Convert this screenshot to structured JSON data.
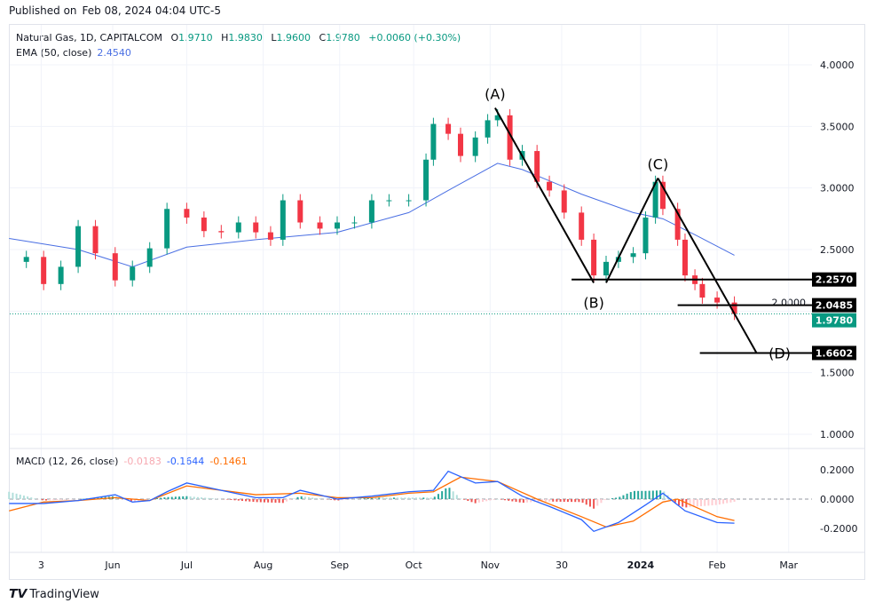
{
  "header": {
    "published_label": "Published on",
    "published_date": "Feb 08, 2024 04:04 UTC-5"
  },
  "legend": {
    "symbol": "Natural Gas, 1D, CAPITALCOM",
    "open_label": "O",
    "open": "1.9710",
    "high_label": "H",
    "high": "1.9830",
    "low_label": "L",
    "low": "1.9600",
    "close_label": "C",
    "close": "1.9780",
    "change": "+0.0060 (+0.30%)",
    "ema_label": "EMA (50, close)",
    "ema_value": "2.4540",
    "macd_label": "MACD (12, 26, close)",
    "macd_hist": "-0.0183",
    "macd_line": "-0.1644",
    "macd_signal": "-0.1461"
  },
  "footer": {
    "brand": "TradingView"
  },
  "colors": {
    "up": "#089981",
    "down": "#f23645",
    "ema": "#4a6fe3",
    "macd": "#2962ff",
    "signal": "#ff6d00",
    "hist_up": "#26a69a",
    "hist_up_light": "#b2dfdb",
    "hist_down": "#ef5350",
    "hist_down_light": "#ffcdd2",
    "current_price": "#089981"
  },
  "chart_data": [
    {
      "type": "candlestick",
      "title": "Natural Gas, 1D, CAPITALCOM",
      "ylim": [
        0.8,
        4.3
      ],
      "y_ticks": [
        "4.0000",
        "3.5000",
        "3.0000",
        "2.5000",
        "2.0000",
        "1.5000",
        "1.0000"
      ],
      "x_ticks": [
        {
          "date": "2023-05-03",
          "label": "3"
        },
        {
          "date": "2023-06-01",
          "label": "Jun"
        },
        {
          "date": "2023-07-01",
          "label": "Jul"
        },
        {
          "date": "2023-08-01",
          "label": "Aug"
        },
        {
          "date": "2023-09-01",
          "label": "Sep"
        },
        {
          "date": "2023-10-01",
          "label": "Oct"
        },
        {
          "date": "2023-11-01",
          "label": "Nov"
        },
        {
          "date": "2023-11-30",
          "label": "30"
        },
        {
          "date": "2024-01-01",
          "label": "2024"
        },
        {
          "date": "2024-02-01",
          "label": "Feb"
        },
        {
          "date": "2024-03-01",
          "label": "Mar"
        }
      ],
      "close": [
        [
          "2023-04-20",
          2.4
        ],
        [
          "2023-04-27",
          2.44
        ],
        [
          "2023-05-04",
          2.22
        ],
        [
          "2023-05-11",
          2.36
        ],
        [
          "2023-05-18",
          2.69
        ],
        [
          "2023-05-25",
          2.47
        ],
        [
          "2023-06-02",
          2.25
        ],
        [
          "2023-06-09",
          2.36
        ],
        [
          "2023-06-16",
          2.51
        ],
        [
          "2023-06-23",
          2.83
        ],
        [
          "2023-07-01",
          2.76
        ],
        [
          "2023-07-08",
          2.65
        ],
        [
          "2023-07-15",
          2.64
        ],
        [
          "2023-07-22",
          2.72
        ],
        [
          "2023-07-29",
          2.64
        ],
        [
          "2023-08-04",
          2.58
        ],
        [
          "2023-08-09",
          2.9
        ],
        [
          "2023-08-16",
          2.72
        ],
        [
          "2023-08-24",
          2.67
        ],
        [
          "2023-08-31",
          2.72
        ],
        [
          "2023-09-07",
          2.72
        ],
        [
          "2023-09-14",
          2.9
        ],
        [
          "2023-09-21",
          2.9
        ],
        [
          "2023-09-29",
          2.9
        ],
        [
          "2023-10-06",
          3.23
        ],
        [
          "2023-10-09",
          3.52
        ],
        [
          "2023-10-15",
          3.44
        ],
        [
          "2023-10-20",
          3.26
        ],
        [
          "2023-10-26",
          3.41
        ],
        [
          "2023-10-31",
          3.55
        ],
        [
          "2023-11-04",
          3.59
        ],
        [
          "2023-11-09",
          3.23
        ],
        [
          "2023-11-14",
          3.3
        ],
        [
          "2023-11-20",
          3.05
        ],
        [
          "2023-11-25",
          2.98
        ],
        [
          "2023-12-01",
          2.8
        ],
        [
          "2023-12-08",
          2.58
        ],
        [
          "2023-12-13",
          2.29
        ],
        [
          "2023-12-18",
          2.4
        ],
        [
          "2023-12-23",
          2.44
        ],
        [
          "2023-12-29",
          2.47
        ],
        [
          "2024-01-03",
          2.76
        ],
        [
          "2024-01-07",
          3.05
        ],
        [
          "2024-01-10",
          2.83
        ],
        [
          "2024-01-16",
          2.58
        ],
        [
          "2024-01-19",
          2.29
        ],
        [
          "2024-01-23",
          2.22
        ],
        [
          "2024-01-26",
          2.11
        ],
        [
          "2024-02-01",
          2.07
        ],
        [
          "2024-02-08",
          1.978
        ]
      ],
      "ema50": [
        [
          "2023-04-20",
          2.59
        ],
        [
          "2023-05-18",
          2.5
        ],
        [
          "2023-06-09",
          2.36
        ],
        [
          "2023-07-01",
          2.52
        ],
        [
          "2023-07-29",
          2.58
        ],
        [
          "2023-08-31",
          2.64
        ],
        [
          "2023-09-29",
          2.8
        ],
        [
          "2023-10-15",
          2.98
        ],
        [
          "2023-11-04",
          3.2
        ],
        [
          "2023-11-14",
          3.15
        ],
        [
          "2023-12-08",
          2.95
        ],
        [
          "2023-12-29",
          2.8
        ],
        [
          "2024-01-10",
          2.75
        ],
        [
          "2024-01-23",
          2.62
        ],
        [
          "2024-02-08",
          2.454
        ]
      ],
      "current_price": 1.978,
      "levels": [
        {
          "value": 2.257,
          "label": "2.2570",
          "from": "2023-12-04"
        },
        {
          "value": 2.0485,
          "label": "2.0485",
          "from": "2024-01-16"
        },
        {
          "value": 1.6602,
          "label": "1.6602",
          "from": "2024-01-25"
        }
      ],
      "current_label": "1.9780",
      "wave_points": [
        {
          "label": "(A)",
          "date": "2023-11-03",
          "value": 3.65,
          "pos": "above"
        },
        {
          "label": "(B)",
          "date": "2023-12-13",
          "value": 2.23,
          "pos": "below"
        },
        {
          "label": "(B)",
          "date": "2023-12-18",
          "value": 2.23,
          "pos": "none"
        },
        {
          "label": "(C)",
          "date": "2024-01-08",
          "value": 3.08,
          "pos": "above"
        },
        {
          "label": "(D)",
          "date": "2024-02-17",
          "value": 1.66,
          "pos": "right"
        }
      ]
    },
    {
      "type": "line",
      "title": "MACD (12, 26, close)",
      "ylim": [
        -0.3,
        0.3
      ],
      "y_ticks": [
        "0.2000",
        "0.0000",
        "-0.2000"
      ],
      "series": [
        {
          "name": "MACD",
          "points": [
            [
              "2023-04-20",
              -0.03
            ],
            [
              "2023-05-04",
              -0.03
            ],
            [
              "2023-05-18",
              -0.01
            ],
            [
              "2023-06-02",
              0.03
            ],
            [
              "2023-06-09",
              -0.02
            ],
            [
              "2023-06-16",
              -0.01
            ],
            [
              "2023-06-23",
              0.05
            ],
            [
              "2023-07-01",
              0.11
            ],
            [
              "2023-07-15",
              0.06
            ],
            [
              "2023-07-29",
              0.01
            ],
            [
              "2023-08-09",
              0.01
            ],
            [
              "2023-08-16",
              0.06
            ],
            [
              "2023-08-31",
              0.0
            ],
            [
              "2023-09-14",
              0.02
            ],
            [
              "2023-09-29",
              0.05
            ],
            [
              "2023-10-09",
              0.06
            ],
            [
              "2023-10-15",
              0.19
            ],
            [
              "2023-10-26",
              0.11
            ],
            [
              "2023-11-04",
              0.12
            ],
            [
              "2023-11-14",
              0.02
            ],
            [
              "2023-11-25",
              -0.05
            ],
            [
              "2023-12-08",
              -0.14
            ],
            [
              "2023-12-13",
              -0.22
            ],
            [
              "2023-12-23",
              -0.16
            ],
            [
              "2024-01-03",
              -0.04
            ],
            [
              "2024-01-10",
              0.04
            ],
            [
              "2024-01-19",
              -0.08
            ],
            [
              "2024-02-01",
              -0.16
            ],
            [
              "2024-02-08",
              -0.1644
            ]
          ]
        },
        {
          "name": "Signal",
          "points": [
            [
              "2023-04-20",
              -0.08
            ],
            [
              "2023-05-04",
              -0.02
            ],
            [
              "2023-05-18",
              -0.01
            ],
            [
              "2023-06-02",
              0.01
            ],
            [
              "2023-06-16",
              -0.01
            ],
            [
              "2023-07-01",
              0.09
            ],
            [
              "2023-07-15",
              0.06
            ],
            [
              "2023-07-29",
              0.03
            ],
            [
              "2023-08-16",
              0.04
            ],
            [
              "2023-08-31",
              0.01
            ],
            [
              "2023-09-14",
              0.01
            ],
            [
              "2023-09-29",
              0.04
            ],
            [
              "2023-10-09",
              0.05
            ],
            [
              "2023-10-20",
              0.15
            ],
            [
              "2023-11-04",
              0.12
            ],
            [
              "2023-11-20",
              0.0
            ],
            [
              "2023-12-08",
              -0.12
            ],
            [
              "2023-12-18",
              -0.19
            ],
            [
              "2023-12-29",
              -0.15
            ],
            [
              "2024-01-10",
              -0.02
            ],
            [
              "2024-01-16",
              0.0
            ],
            [
              "2024-02-01",
              -0.12
            ],
            [
              "2024-02-08",
              -0.1461
            ]
          ]
        }
      ]
    }
  ]
}
